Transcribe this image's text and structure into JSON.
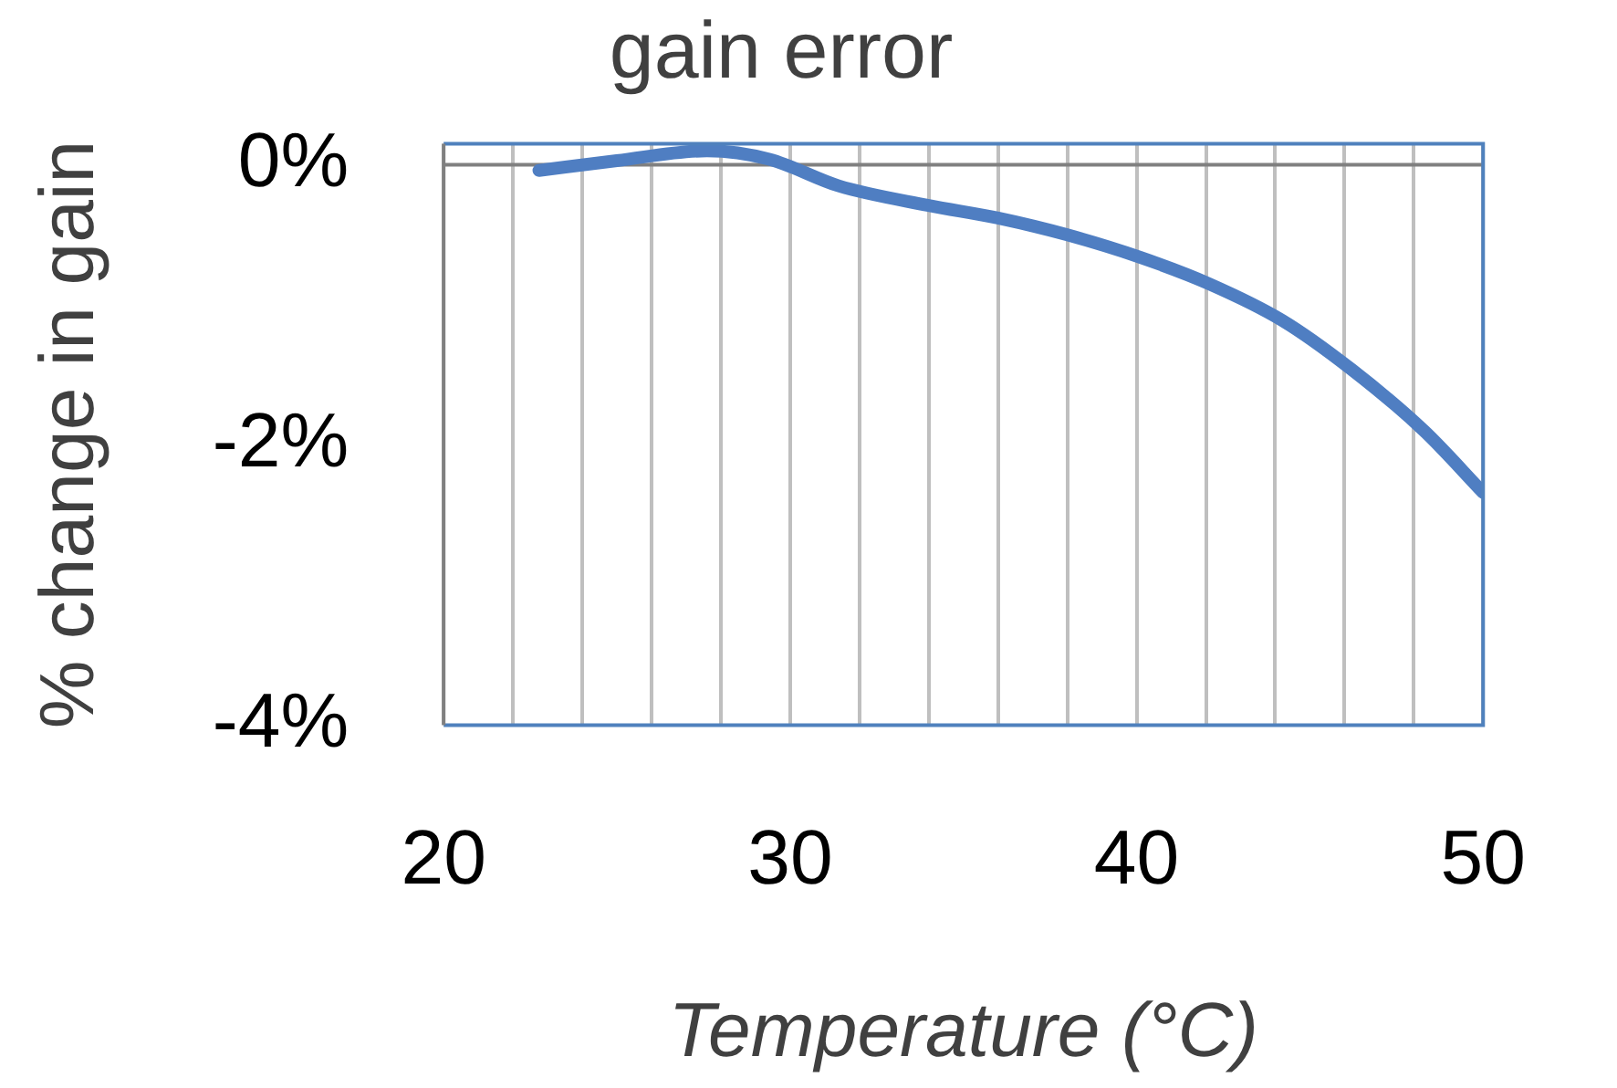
{
  "chart_data": {
    "type": "line",
    "title": "gain error",
    "xlabel": "Temperature (°C)",
    "ylabel": "% change in gain",
    "x": [
      22.75,
      25,
      27.6,
      29.4,
      31.4,
      34,
      36,
      38,
      40.1,
      42.1,
      44.2,
      46.2,
      48.3,
      50
    ],
    "series": [
      {
        "color": "#4f7ec2",
        "values": [
          -0.04,
          0.03,
          0.1,
          0.04,
          -0.15,
          -0.29,
          -0.38,
          -0.5,
          -0.66,
          -0.85,
          -1.11,
          -1.46,
          -1.9,
          -2.34
        ]
      }
    ],
    "xlim": [
      20,
      50
    ],
    "xticks": [
      20,
      {
        "value": 22,
        "label": null
      },
      {
        "value": 24,
        "label": null
      },
      {
        "value": 26,
        "label": null
      },
      {
        "value": 28,
        "label": null
      },
      30,
      {
        "value": 32,
        "label": null
      },
      {
        "value": 34,
        "label": null
      },
      {
        "value": 36,
        "label": null
      },
      {
        "value": 38,
        "label": null
      },
      40,
      {
        "value": 42,
        "label": null
      },
      {
        "value": 44,
        "label": null
      },
      {
        "value": 46,
        "label": null
      },
      {
        "value": 48,
        "label": null
      },
      50
    ],
    "ylim": [
      -4,
      0.15
    ],
    "yticks": [
      {
        "value": 0,
        "label": "0%"
      },
      {
        "value": -2,
        "label": "-2%"
      },
      {
        "value": -4,
        "label": "-4%"
      }
    ],
    "ref_lines": [
      {
        "axis": "y",
        "value": 0,
        "color": "#808080"
      }
    ],
    "grid": "x",
    "legend": false,
    "marker": "none",
    "line_style": "solid"
  }
}
